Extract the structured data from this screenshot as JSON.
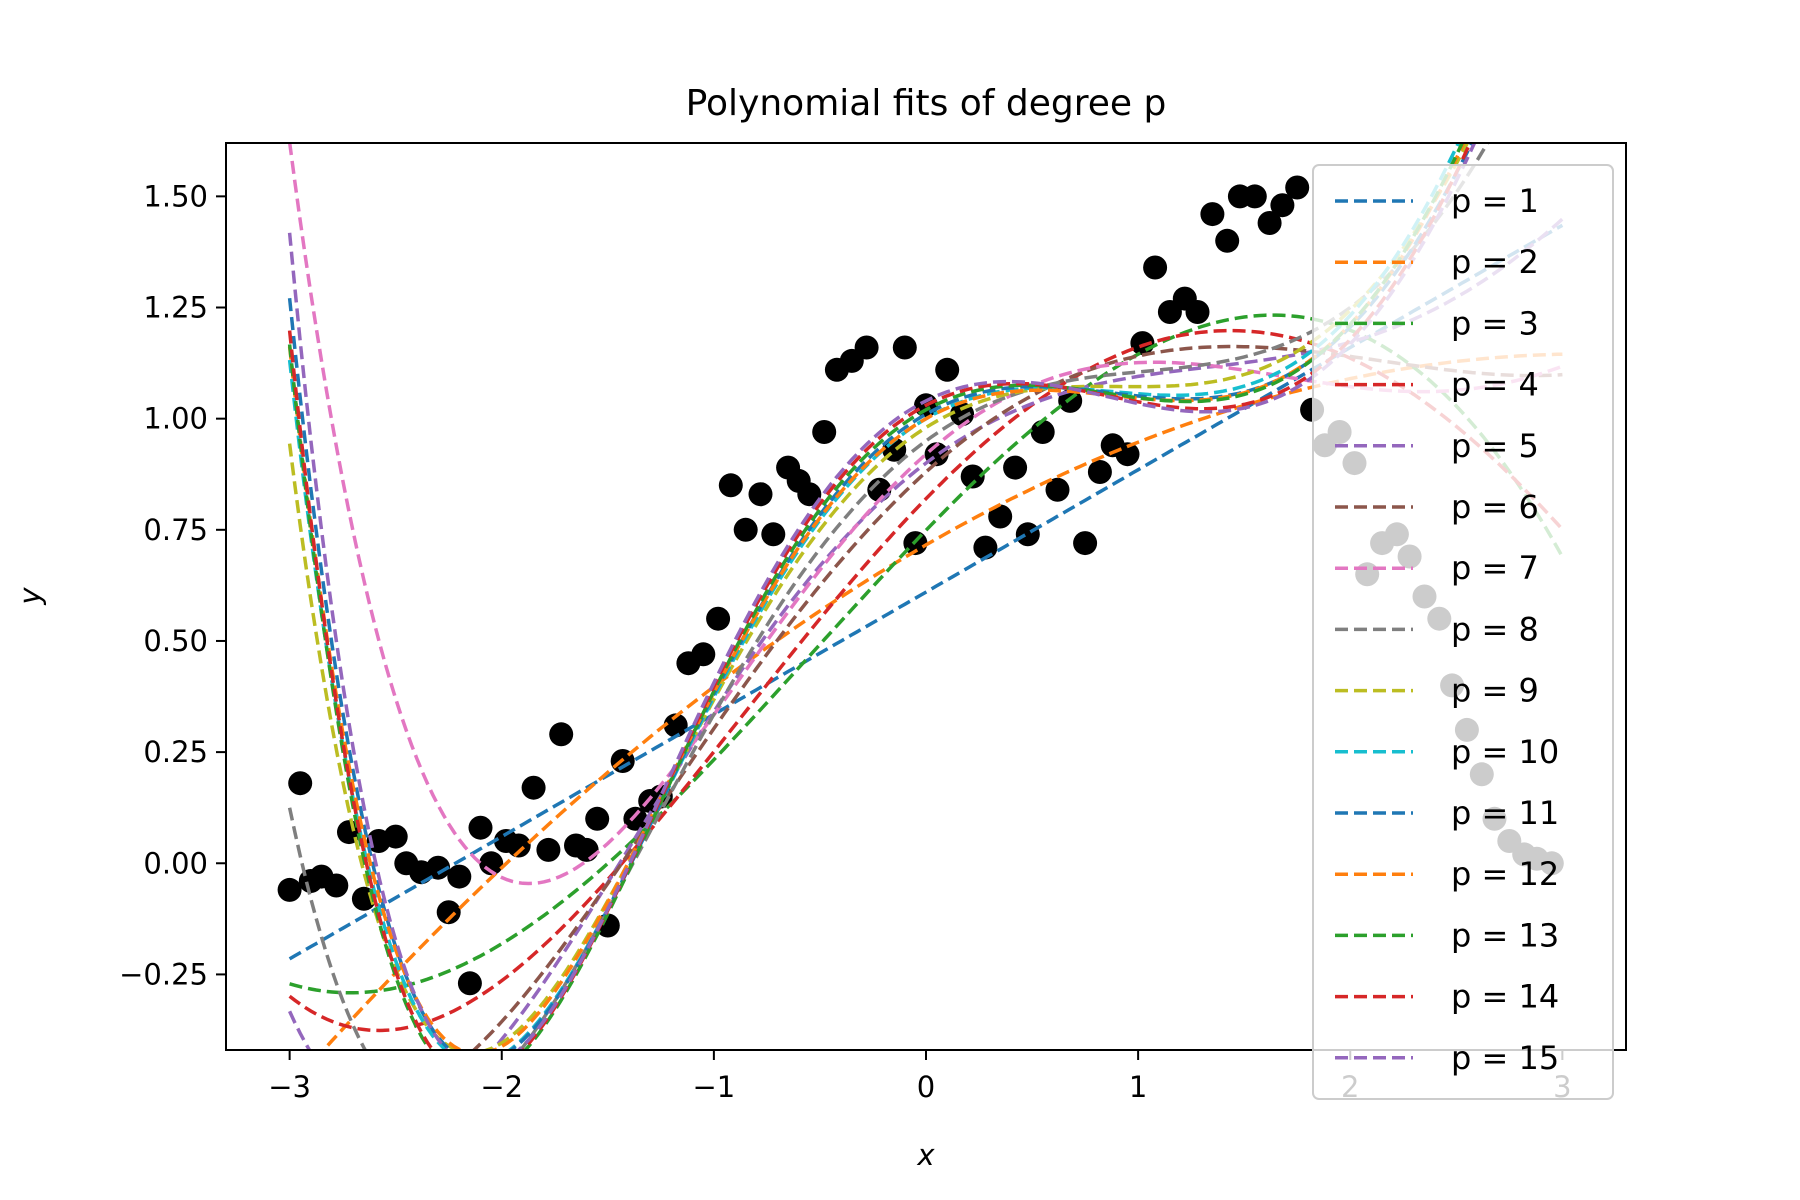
{
  "chart_data": {
    "type": "scatter",
    "title": "Polynomial fits of degree p",
    "xlabel": "x",
    "ylabel": "y",
    "xlim": [
      -3.3,
      3.3
    ],
    "ylim": [
      -0.42,
      1.62
    ],
    "xticks": [
      -3,
      -2,
      -1,
      0,
      1,
      2,
      3
    ],
    "xtick_labels": [
      "−3",
      "−2",
      "−1",
      "0",
      "1",
      "2",
      "3"
    ],
    "yticks": [
      -0.25,
      0,
      0.25,
      0.5,
      0.75,
      1.0,
      1.25,
      1.5
    ],
    "ytick_labels": [
      "−0.25",
      "0.00",
      "0.25",
      "0.50",
      "0.75",
      "1.00",
      "1.25",
      "1.50"
    ],
    "grid": false,
    "legend_position": "right",
    "points": {
      "color": "#000000",
      "x": [
        -3.0,
        -2.95,
        -2.9,
        -2.85,
        -2.78,
        -2.72,
        -2.65,
        -2.58,
        -2.5,
        -2.45,
        -2.38,
        -2.3,
        -2.25,
        -2.2,
        -2.15,
        -2.1,
        -2.05,
        -1.98,
        -1.92,
        -1.85,
        -1.78,
        -1.72,
        -1.65,
        -1.6,
        -1.55,
        -1.5,
        -1.43,
        -1.37,
        -1.3,
        -1.25,
        -1.18,
        -1.12,
        -1.05,
        -0.98,
        -0.92,
        -0.85,
        -0.78,
        -0.72,
        -0.65,
        -0.6,
        -0.55,
        -0.48,
        -0.42,
        -0.35,
        -0.28,
        -0.22,
        -0.15,
        -0.1,
        -0.05,
        0.0,
        0.05,
        0.1,
        0.17,
        0.22,
        0.28,
        0.35,
        0.42,
        0.48,
        0.55,
        0.62,
        0.68,
        0.75,
        0.82,
        0.88,
        0.95,
        1.02,
        1.08,
        1.15,
        1.22,
        1.28,
        1.35,
        1.42,
        1.48,
        1.55,
        1.62,
        1.68,
        1.75,
        1.82,
        1.88,
        1.95,
        2.02,
        2.08,
        2.15,
        2.22,
        2.28,
        2.35,
        2.42,
        2.48,
        2.55,
        2.62,
        2.68,
        2.75,
        2.82,
        2.88,
        2.95
      ],
      "y": [
        -0.06,
        0.18,
        -0.04,
        -0.03,
        -0.05,
        0.07,
        -0.08,
        0.05,
        0.06,
        0.0,
        -0.02,
        -0.01,
        -0.11,
        -0.03,
        -0.27,
        0.08,
        0.0,
        0.05,
        0.04,
        0.17,
        0.03,
        0.29,
        0.04,
        0.03,
        0.1,
        -0.14,
        0.23,
        0.1,
        0.14,
        0.15,
        0.31,
        0.45,
        0.47,
        0.55,
        0.85,
        0.75,
        0.83,
        0.74,
        0.89,
        0.86,
        0.83,
        0.97,
        1.11,
        1.13,
        1.16,
        0.84,
        0.93,
        1.16,
        0.72,
        1.03,
        0.92,
        1.11,
        1.01,
        0.87,
        0.71,
        0.78,
        0.89,
        0.74,
        0.97,
        0.84,
        1.04,
        0.72,
        0.88,
        0.94,
        0.92,
        1.17,
        1.34,
        1.24,
        1.27,
        1.24,
        1.46,
        1.4,
        1.5,
        1.5,
        1.44,
        1.48,
        1.52,
        1.02,
        0.94,
        0.97,
        0.9,
        0.65,
        0.72,
        0.74,
        0.69,
        0.6,
        0.55,
        0.4,
        0.3,
        0.2,
        0.1,
        0.05,
        0.02,
        0.01,
        0.0
      ]
    },
    "series": [
      {
        "name": "p = 1",
        "color": "#1f77b4",
        "coef": [
          0.61,
          0.275
        ]
      },
      {
        "name": "p = 2",
        "color": "#ff7f0e",
        "coef": [
          0.716,
          0.275,
          -0.044
        ]
      },
      {
        "name": "p = 3",
        "color": "#2ca02c",
        "coef": [
          0.749,
          0.493,
          -0.06,
          -0.037
        ]
      },
      {
        "name": "p = 4",
        "color": "#d62728",
        "coef": [
          0.82,
          0.49,
          -0.12,
          -0.035,
          0.006
        ]
      },
      {
        "name": "p = 5",
        "color": "#9467bd",
        "coef": [
          0.9,
          0.36,
          -0.2,
          0.02,
          0.018,
          -0.003
        ]
      },
      {
        "name": "p = 6",
        "color": "#8c564b",
        "coef": [
          0.88,
          0.43,
          -0.17,
          -0.01,
          0.012,
          -0.001
        ]
      },
      {
        "name": "p = 7",
        "color": "#e377c2",
        "coef": [
          0.92,
          0.42,
          -0.22,
          -0.02,
          0.03,
          -0.004
        ]
      },
      {
        "name": "p = 8",
        "color": "#7f7f7f",
        "coef": [
          0.95,
          0.35,
          -0.26,
          0.04,
          0.03,
          -0.005
        ]
      },
      {
        "name": "p = 9",
        "color": "#bcbd22",
        "coef": [
          0.98,
          0.3,
          -0.3,
          0.06,
          0.04,
          -0.008
        ]
      },
      {
        "name": "p = 10",
        "color": "#17becf",
        "coef": [
          1.0,
          0.28,
          -0.33,
          0.07,
          0.045,
          -0.009
        ]
      },
      {
        "name": "p = 11",
        "color": "#1f77b4",
        "coef": [
          1.01,
          0.27,
          -0.34,
          0.075,
          0.046,
          -0.01
        ]
      },
      {
        "name": "p = 12",
        "color": "#ff7f0e",
        "coef": [
          1.0,
          0.27,
          -0.33,
          0.07,
          0.045,
          -0.009
        ]
      },
      {
        "name": "p = 13",
        "color": "#2ca02c",
        "coef": [
          1.02,
          0.26,
          -0.35,
          0.08,
          0.047,
          -0.01
        ]
      },
      {
        "name": "p = 14",
        "color": "#d62728",
        "coef": [
          1.03,
          0.25,
          -0.36,
          0.08,
          0.048,
          -0.01
        ]
      },
      {
        "name": "p = 15",
        "color": "#9467bd",
        "coef": [
          1.04,
          0.24,
          -0.37,
          0.085,
          0.05,
          -0.011
        ]
      }
    ]
  }
}
